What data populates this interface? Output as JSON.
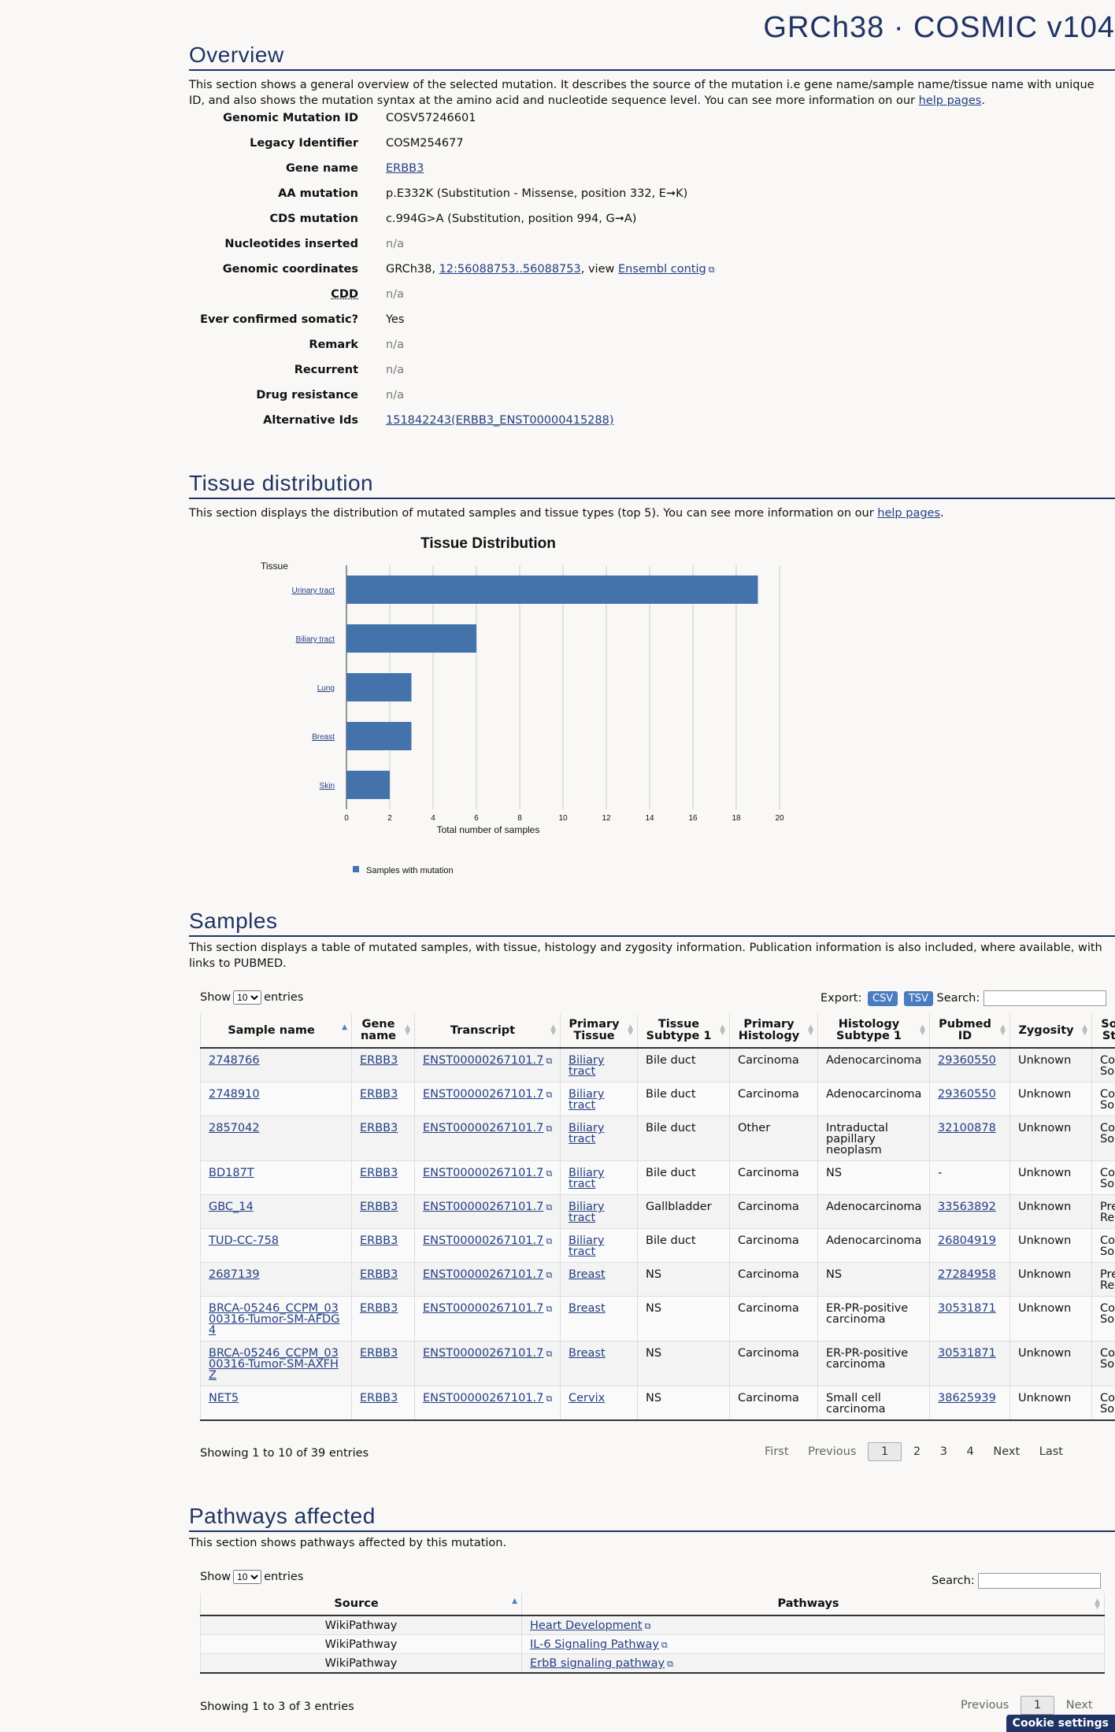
{
  "version_title": "GRCh38 · COSMIC v104",
  "overview": {
    "heading": "Overview",
    "description_1": "This section shows a general overview of the selected mutation. It describes the source of the mutation i.e gene name/sample name/tissue name with unique ID, and also shows the mutation syntax at the amino acid and nucleotide sequence level. You can see more information on our ",
    "help_link": "help pages",
    "rows": {
      "genomic_mutation_id": {
        "label": "Genomic Mutation ID",
        "value": "COSV57246601"
      },
      "legacy_identifier": {
        "label": "Legacy Identifier",
        "value": "COSM254677"
      },
      "gene_name": {
        "label": "Gene name",
        "value": "ERBB3"
      },
      "aa_mutation": {
        "label": "AA mutation",
        "value": "p.E332K (Substitution - Missense, position 332, E➞K)"
      },
      "cds_mutation": {
        "label": "CDS mutation",
        "value": "c.994G>A (Substitution, position 994, G➞A)"
      },
      "nucleotides_inserted": {
        "label": "Nucleotides inserted",
        "value": "n/a"
      },
      "genomic_coordinates": {
        "label": "Genomic coordinates",
        "prefix": "GRCh38, ",
        "link": "12:56088753..56088753",
        "middle": ", view ",
        "link2": "Ensembl contig"
      },
      "cdd": {
        "label": "CDD",
        "value": "n/a"
      },
      "ever_confirmed_somatic": {
        "label": "Ever confirmed somatic?",
        "value": "Yes"
      },
      "remark": {
        "label": "Remark",
        "value": "n/a"
      },
      "recurrent": {
        "label": "Recurrent",
        "value": "n/a"
      },
      "drug_resistance": {
        "label": "Drug resistance",
        "value": "n/a"
      },
      "alternative_ids": {
        "label": "Alternative Ids",
        "value": "151842243(ERBB3_ENST00000415288)"
      }
    }
  },
  "tissue": {
    "heading": "Tissue distribution",
    "description": "This section displays the distribution of mutated samples and tissue types (top 5). You can see more information on our ",
    "help_link": "help pages"
  },
  "chart_data": {
    "type": "bar",
    "orientation": "horizontal",
    "title": "Tissue Distribution",
    "ylabel": "Tissue",
    "xlabel": "Total number of samples",
    "categories": [
      "Urinary tract",
      "Biliary tract",
      "Lung",
      "Breast",
      "Skin"
    ],
    "series": [
      {
        "name": "Samples with mutation",
        "values": [
          19,
          6,
          3,
          3,
          2
        ]
      }
    ],
    "xlim": [
      0,
      20
    ],
    "xticks": [
      0,
      2,
      4,
      6,
      8,
      10,
      12,
      14,
      16,
      18,
      20
    ],
    "grid": true,
    "legend_position": "bottom-left",
    "bar_color": "#4472aa"
  },
  "samples": {
    "heading": "Samples",
    "description": "This section displays a table of mutated samples, with tissue, histology and zygosity information. Publication information is also included, where available, with links to PUBMED.",
    "show_label": "Show",
    "entries_label": "entries",
    "page_length": "10",
    "export_label": "Export:",
    "csv": "CSV",
    "tsv": "TSV",
    "search_label": "Search:",
    "columns": [
      "Sample name",
      "Gene name",
      "Transcript",
      "Primary Tissue",
      "Tissue Subtype 1",
      "Primary Histology",
      "Histology Subtype 1",
      "Pubmed ID",
      "Zygosity",
      "So St"
    ],
    "rows": [
      {
        "sample": "2748766",
        "gene": "ERBB3",
        "transcript": "ENST00000267101.7",
        "tissue": "Biliary tract",
        "subtype": "Bile duct",
        "histology": "Carcinoma",
        "hist_sub": "Adenocarcinoma",
        "pubmed": "29360550",
        "zygosity": "Unknown",
        "status": "Con Som"
      },
      {
        "sample": "2748910",
        "gene": "ERBB3",
        "transcript": "ENST00000267101.7",
        "tissue": "Biliary tract",
        "subtype": "Bile duct",
        "histology": "Carcinoma",
        "hist_sub": "Adenocarcinoma",
        "pubmed": "29360550",
        "zygosity": "Unknown",
        "status": "Con Som"
      },
      {
        "sample": "2857042",
        "gene": "ERBB3",
        "transcript": "ENST00000267101.7",
        "tissue": "Biliary tract",
        "subtype": "Bile duct",
        "histology": "Other",
        "hist_sub": "Intraductal papillary neoplasm",
        "pubmed": "32100878",
        "zygosity": "Unknown",
        "status": "Con Som"
      },
      {
        "sample": "BD187T",
        "gene": "ERBB3",
        "transcript": "ENST00000267101.7",
        "tissue": "Biliary tract",
        "subtype": "Bile duct",
        "histology": "Carcinoma",
        "hist_sub": "NS",
        "pubmed": "-",
        "zygosity": "Unknown",
        "status": "Con Som"
      },
      {
        "sample": "GBC_14",
        "gene": "ERBB3",
        "transcript": "ENST00000267101.7",
        "tissue": "Biliary tract",
        "subtype": "Gallbladder",
        "histology": "Carcinoma",
        "hist_sub": "Adenocarcinoma",
        "pubmed": "33563892",
        "zygosity": "Unknown",
        "status": "Prev Rep"
      },
      {
        "sample": "TUD-CC-758",
        "gene": "ERBB3",
        "transcript": "ENST00000267101.7",
        "tissue": "Biliary tract",
        "subtype": "Bile duct",
        "histology": "Carcinoma",
        "hist_sub": "Adenocarcinoma",
        "pubmed": "26804919",
        "zygosity": "Unknown",
        "status": "Con Som"
      },
      {
        "sample": "2687139",
        "gene": "ERBB3",
        "transcript": "ENST00000267101.7",
        "tissue": "Breast",
        "subtype": "NS",
        "histology": "Carcinoma",
        "hist_sub": "NS",
        "pubmed": "27284958",
        "zygosity": "Unknown",
        "status": "Prev Rep"
      },
      {
        "sample": "BRCA-05246_CCPM_0300316-Tumor-SM-AFDG4",
        "gene": "ERBB3",
        "transcript": "ENST00000267101.7",
        "tissue": "Breast",
        "subtype": "NS",
        "histology": "Carcinoma",
        "hist_sub": "ER-PR-positive carcinoma",
        "pubmed": "30531871",
        "zygosity": "Unknown",
        "status": "Con Som"
      },
      {
        "sample": "BRCA-05246_CCPM_0300316-Tumor-SM-AXFHZ",
        "gene": "ERBB3",
        "transcript": "ENST00000267101.7",
        "tissue": "Breast",
        "subtype": "NS",
        "histology": "Carcinoma",
        "hist_sub": "ER-PR-positive carcinoma",
        "pubmed": "30531871",
        "zygosity": "Unknown",
        "status": "Con Som"
      },
      {
        "sample": "NET5",
        "gene": "ERBB3",
        "transcript": "ENST00000267101.7",
        "tissue": "Cervix",
        "subtype": "NS",
        "histology": "Carcinoma",
        "hist_sub": "Small cell carcinoma",
        "pubmed": "38625939",
        "zygosity": "Unknown",
        "status": "Con Som"
      }
    ],
    "info": "Showing 1 to 10 of 39 entries",
    "pager": {
      "first": "First",
      "previous": "Previous",
      "pages": [
        "1",
        "2",
        "3",
        "4"
      ],
      "next": "Next",
      "last": "Last"
    }
  },
  "pathways": {
    "heading": "Pathways affected",
    "description": "This section shows pathways affected by this mutation.",
    "show_label": "Show",
    "entries_label": "entries",
    "page_length": "10",
    "search_label": "Search:",
    "columns": [
      "Source",
      "Pathways"
    ],
    "rows": [
      {
        "source": "WikiPathway",
        "pathway": "Heart Development"
      },
      {
        "source": "WikiPathway",
        "pathway": "IL-6 Signaling Pathway"
      },
      {
        "source": "WikiPathway",
        "pathway": "ErbB signaling pathway"
      }
    ],
    "info": "Showing 1 to 3 of 3 entries",
    "pager": {
      "previous": "Previous",
      "current": "1",
      "next": "Next"
    }
  },
  "cookie_button": "Cookie settings"
}
